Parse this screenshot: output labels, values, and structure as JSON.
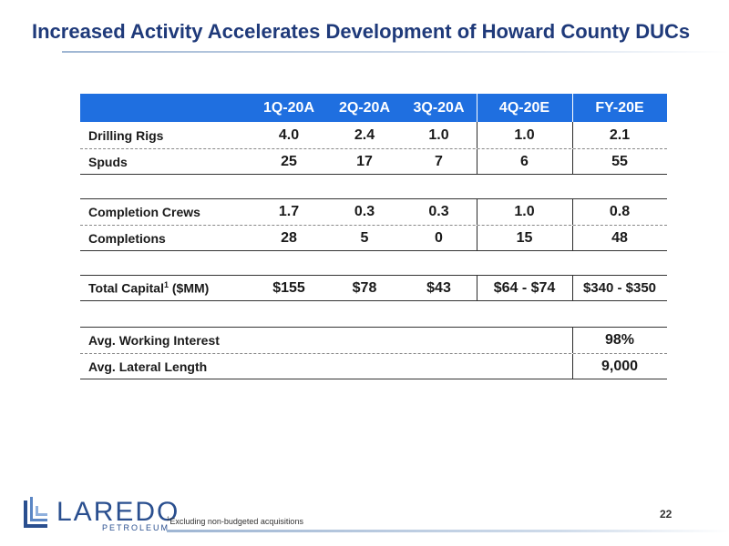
{
  "title": "Increased Activity Accelerates Development of Howard County DUCs",
  "table": {
    "headers": [
      "1Q-20A",
      "2Q-20A",
      "3Q-20A",
      "4Q-20E",
      "FY-20E"
    ],
    "rows": [
      {
        "label": "Drilling Rigs",
        "values": [
          "4.0",
          "2.4",
          "1.0",
          "1.0",
          "2.1"
        ]
      },
      {
        "label": "Spuds",
        "values": [
          "25",
          "17",
          "7",
          "6",
          "55"
        ]
      },
      {
        "label": "Completion Crews",
        "values": [
          "1.7",
          "0.3",
          "0.3",
          "1.0",
          "0.8"
        ]
      },
      {
        "label": "Completions",
        "values": [
          "28",
          "5",
          "0",
          "15",
          "48"
        ]
      },
      {
        "label": "Total Capital",
        "label_sup": "1",
        "label_suffix": " ($MM)",
        "values": [
          "$155",
          "$78",
          "$43",
          "$64 - $74",
          "$340 - $350"
        ]
      },
      {
        "label": "Avg. Working Interest",
        "value": "98%"
      },
      {
        "label": "Avg. Lateral Length",
        "value": "9,000"
      }
    ]
  },
  "logo": {
    "name": "LAREDO",
    "sub": "PETROLEUM"
  },
  "footnote": {
    "sup": "1",
    "text": "Excluding non-budgeted acquisitions"
  },
  "page_number": "22",
  "colors": {
    "header_bg": "#1f6fe0",
    "title": "#1f3a7a",
    "logo": "#2a4f8f"
  }
}
